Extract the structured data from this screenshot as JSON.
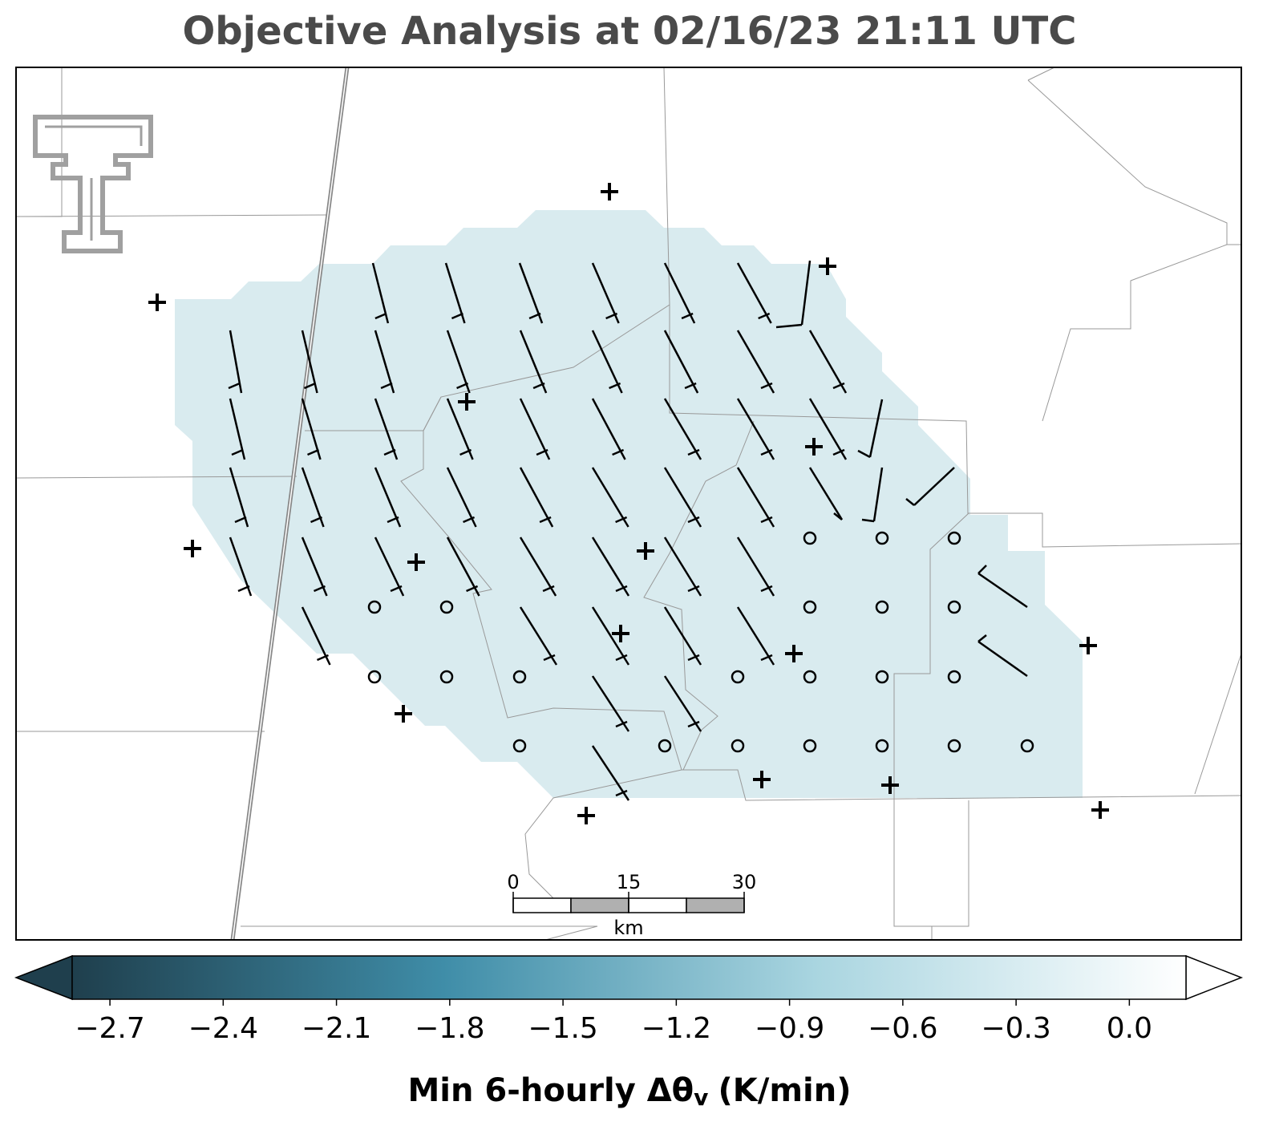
{
  "title": "Objective Analysis at 02/16/23 21:11 UTC",
  "colorbar": {
    "label": "Min 6-hourly Δθ",
    "label_subscript": "v",
    "label_units": "(K/min)",
    "lim": [
      -2.8,
      0.15
    ],
    "colors": [
      "#1f3f4d",
      "#3f8da8",
      "#a9d5e0",
      "#ffffff"
    ],
    "ticks": [
      {
        "value": -2.7,
        "label": "−2.7"
      },
      {
        "value": -2.4,
        "label": "−2.4"
      },
      {
        "value": -2.1,
        "label": "−2.1"
      },
      {
        "value": -1.8,
        "label": "−1.8"
      },
      {
        "value": -1.5,
        "label": "−1.5"
      },
      {
        "value": -1.2,
        "label": "−1.2"
      },
      {
        "value": -0.9,
        "label": "−0.9"
      },
      {
        "value": -0.6,
        "label": "−0.6"
      },
      {
        "value": -0.3,
        "label": "−0.3"
      },
      {
        "value": 0.0,
        "label": "0.0"
      }
    ]
  },
  "scale_bar": {
    "ticks": [
      0,
      15,
      30
    ],
    "unit": "km"
  }
}
